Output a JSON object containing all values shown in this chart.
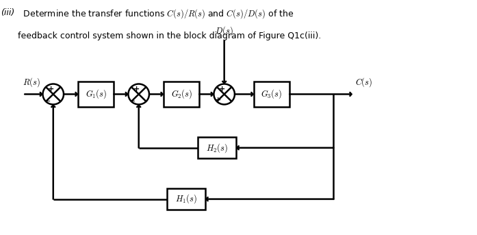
{
  "bg_color": "#ffffff",
  "title_italic": "(iii)",
  "title_text": "  Determine the transfer functions $C(s)/R(s)$ and $C(s)/D(s)$ of the",
  "title_line2": "feedback control system shown in the block diagram of Figure Q1c(iii).",
  "ds_label": "$D(s)$",
  "rs_label": "$R(s)$",
  "cs_label": "$C(s)$",
  "block_labels": [
    "$G_1(s)$",
    "$G_2(s)$",
    "$G_3(s)$",
    "$H_2(s)$",
    "$H_1(s)$"
  ],
  "lw": 1.8,
  "fs_title": 9,
  "fs_block": 9,
  "fs_sign": 8
}
